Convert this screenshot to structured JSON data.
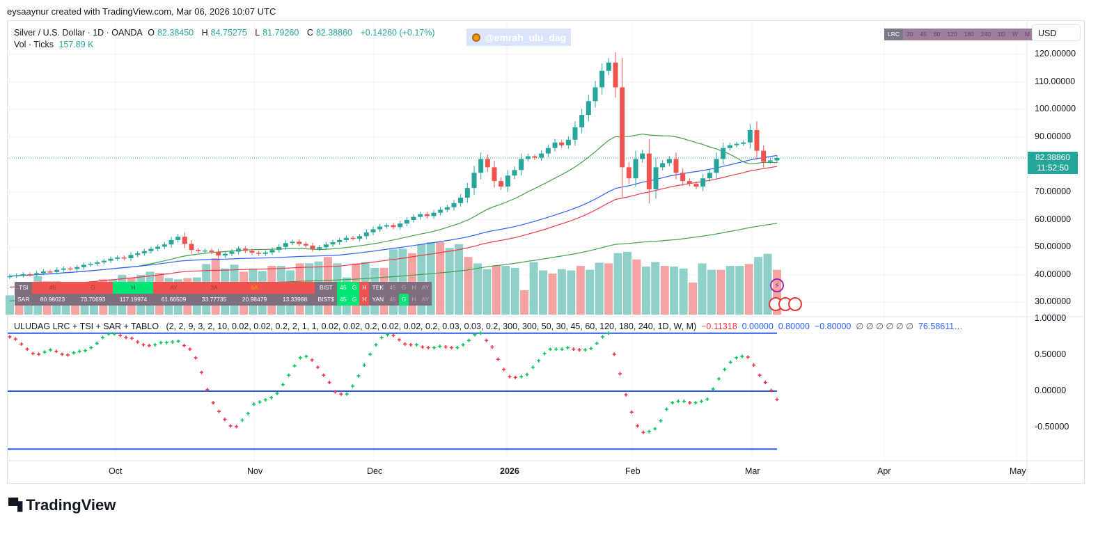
{
  "credit": "eysaaynur created with TradingView.com, Mar 06, 2026 10:07 UTC",
  "legend": {
    "symbol": "Silver / U.S. Dollar · 1D · OANDA",
    "o_label": "O",
    "o": "82.38450",
    "h_label": "H",
    "h": "84.75275",
    "l_label": "L",
    "l": "81.79260",
    "c_label": "C",
    "c": "82.38860",
    "change": "+0.14260 (+0.17%)",
    "vol_label": "Vol · Ticks",
    "vol": "157.89 K"
  },
  "watermark": "@emrah_ulu_dag",
  "timeframe_bar": [
    "LRC",
    "30",
    "45",
    "60",
    "120",
    "180",
    "240",
    "1D",
    "W",
    "M"
  ],
  "currency": "USD",
  "price_tag": {
    "price": "82.38860",
    "countdown": "11:52:50"
  },
  "colors": {
    "up": "#26a69a",
    "down": "#ef5350",
    "vol_up": "#8fd1c9",
    "vol_down": "#f4a3a3",
    "ma_blue": "#2962ff",
    "ma_red": "#f23645",
    "ma_green": "#43a047",
    "ind_line": "#2c5ae8"
  },
  "tablo": {
    "row1": [
      "TSI",
      "45",
      "G",
      "H",
      "AY",
      "3A",
      "6A",
      "",
      "BIST",
      "45",
      "G",
      "H",
      "TEK",
      "45",
      "G",
      "H",
      "AY"
    ],
    "row2": [
      "SAR",
      "80.98023",
      "73.70693",
      "117.19974",
      "61.66509",
      "33.77735",
      "20.98479",
      "13.33988",
      "BIST$",
      "45",
      "G",
      "H",
      "YAN",
      "45",
      "G",
      "H",
      "AY"
    ]
  },
  "indicator": {
    "name": "ULUDAG LRC + TSI + SAR + TABLO",
    "params": "(2, 2, 9, 3, 2, 10, 0.02, 0.02, 0.2, 2, 1, 1, 0.02, 0.02, 0.2, 0.02, 0.02, 0.2, 0.03, 0.03, 0.2, 300, 300, 50, 30, 45, 60, 120, 180, 240, 1D, W, M)",
    "v1": "−0.11318",
    "v2": "0.00000",
    "v3": "0.80000",
    "v4": "−0.80000",
    "nulls": "∅  ∅  ∅  ∅  ∅  ∅",
    "v5": "76.58611…"
  },
  "logo": "TradingView",
  "chart_data": [
    {
      "type": "candlestick",
      "title": "Silver / U.S. Dollar · 1D · OANDA",
      "ylabel": "USD",
      "ylim": [
        25,
        125
      ],
      "y_ticks": [
        "120.00000",
        "110.00000",
        "100.00000",
        "90.00000",
        "70.00000",
        "60.00000",
        "50.00000",
        "40.00000",
        "30.00000"
      ],
      "x_ticks": [
        "Oct",
        "Nov",
        "Dec",
        "2026",
        "Feb",
        "Mar",
        "Apr",
        "May"
      ],
      "close": [
        39.5,
        39.8,
        40.2,
        40.0,
        40.6,
        41.2,
        41.0,
        41.8,
        42.3,
        42.1,
        42.8,
        43.6,
        44.0,
        44.5,
        45.1,
        45.8,
        46.3,
        46.0,
        47.2,
        47.8,
        48.6,
        49.4,
        50.2,
        51.0,
        52.6,
        53.8,
        51.2,
        49.0,
        48.6,
        48.8,
        48.3,
        47.0,
        47.6,
        48.4,
        49.5,
        48.7,
        48.0,
        47.6,
        48.1,
        49.0,
        50.1,
        51.5,
        52.0,
        51.2,
        50.6,
        49.4,
        50.0,
        51.0,
        51.8,
        52.6,
        53.4,
        53.1,
        54.0,
        55.4,
        56.5,
        57.5,
        58.0,
        57.3,
        58.6,
        59.9,
        61.0,
        62.0,
        61.3,
        62.5,
        63.6,
        64.5,
        66.0,
        68.0,
        71.5,
        77.0,
        82.0,
        79.0,
        74.0,
        72.0,
        76.0,
        78.0,
        82.0,
        83.0,
        82.5,
        84.0,
        86.0,
        88.0,
        87.0,
        89.0,
        93.5,
        98.0,
        103.0,
        108.0,
        114.0,
        117.0,
        108.0,
        79.0,
        75.0,
        82.0,
        84.0,
        71.0,
        79.0,
        80.5,
        82.0,
        77.0,
        74.0,
        73.0,
        72.0,
        75.0,
        77.0,
        82.0,
        86.0,
        87.0,
        87.5,
        88.0,
        92.5,
        85.0,
        81.0,
        81.5,
        82.3886
      ],
      "volume_ticks_k_relative": [
        30,
        30,
        28,
        60,
        52,
        52,
        47,
        46,
        46,
        52,
        55,
        55,
        62,
        57,
        62,
        67,
        65,
        57,
        55,
        57,
        58,
        79,
        88,
        72,
        78,
        67,
        72,
        68,
        76,
        76,
        69,
        80,
        80,
        83,
        90,
        80,
        58,
        80,
        82,
        73,
        73,
        102,
        103,
        96,
        110,
        113,
        113,
        104,
        110,
        90,
        80,
        71,
        77,
        76,
        73,
        38,
        82,
        69,
        64,
        71,
        69,
        76,
        70,
        81,
        80,
        96,
        98,
        86,
        75,
        82,
        76,
        75,
        72,
        50,
        80,
        70,
        70,
        76,
        76,
        79,
        90,
        95,
        70
      ]
    },
    {
      "type": "scatter",
      "title": "ULUDAG LRC + TSI + SAR + TABLO",
      "ylim": [
        -1.0,
        1.0
      ],
      "y_ticks": [
        "1.00000",
        "0.50000",
        "0.00000",
        "-0.50000"
      ],
      "hlines": [
        0.8,
        0.0,
        -0.8
      ],
      "values": [
        0.75,
        0.72,
        0.65,
        0.58,
        0.52,
        0.51,
        0.54,
        0.57,
        0.55,
        0.51,
        0.5,
        0.53,
        0.55,
        0.56,
        0.6,
        0.66,
        0.74,
        0.79,
        0.79,
        0.77,
        0.74,
        0.73,
        0.68,
        0.64,
        0.63,
        0.64,
        0.67,
        0.67,
        0.68,
        0.69,
        0.63,
        0.58,
        0.46,
        0.26,
        0.02,
        -0.16,
        -0.28,
        -0.39,
        -0.48,
        -0.49,
        -0.4,
        -0.31,
        -0.18,
        -0.15,
        -0.12,
        -0.09,
        -0.03,
        0.09,
        0.22,
        0.35,
        0.46,
        0.48,
        0.43,
        0.33,
        0.22,
        0.12,
        -0.01,
        -0.04,
        -0.04,
        0.07,
        0.21,
        0.36,
        0.51,
        0.64,
        0.74,
        0.78,
        0.77,
        0.71,
        0.65,
        0.64,
        0.64,
        0.61,
        0.6,
        0.6,
        0.62,
        0.61,
        0.6,
        0.6,
        0.64,
        0.7,
        0.78,
        0.8,
        0.7,
        0.61,
        0.44,
        0.3,
        0.2,
        0.19,
        0.2,
        0.23,
        0.33,
        0.42,
        0.52,
        0.58,
        0.58,
        0.58,
        0.6,
        0.58,
        0.57,
        0.57,
        0.59,
        0.66,
        0.75,
        0.8,
        0.51,
        0.24,
        -0.05,
        -0.29,
        -0.48,
        -0.57,
        -0.56,
        -0.52,
        -0.41,
        -0.25,
        -0.16,
        -0.14,
        -0.14,
        -0.16,
        -0.16,
        -0.14,
        -0.11,
        0.03,
        0.17,
        0.3,
        0.4,
        0.46,
        0.48,
        0.47,
        0.36,
        0.22,
        0.12,
        0.01,
        -0.11318
      ]
    }
  ]
}
